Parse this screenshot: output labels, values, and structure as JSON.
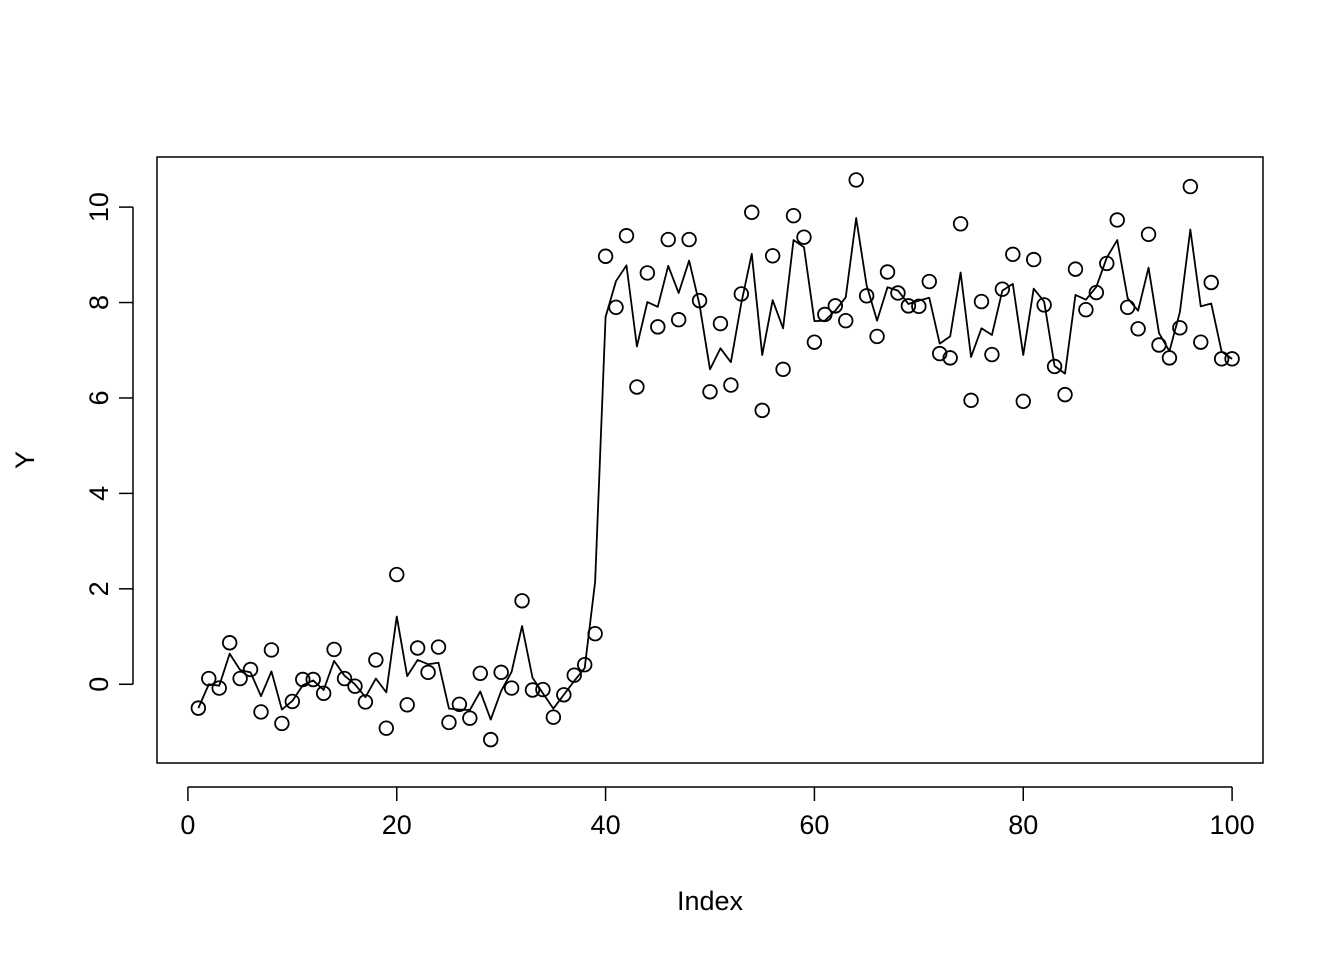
{
  "chart_data": {
    "type": "scatter",
    "title": "",
    "xlabel": "Index",
    "ylabel": "Y",
    "xlim": [
      -2.96,
      102.96
    ],
    "ylim": [
      -1.65,
      11.05
    ],
    "grid": false,
    "legend": "none",
    "x_ticks": [
      0,
      20,
      40,
      60,
      80,
      100
    ],
    "y_ticks": [
      0,
      2,
      4,
      6,
      8,
      10
    ],
    "series": [
      {
        "kind": "points",
        "values": [
          -0.5,
          0.12,
          -0.08,
          0.87,
          0.12,
          0.31,
          -0.58,
          0.72,
          -0.82,
          -0.36,
          0.1,
          0.1,
          -0.19,
          0.73,
          0.12,
          -0.04,
          -0.37,
          0.51,
          -0.92,
          2.3,
          -0.43,
          0.76,
          0.25,
          0.78,
          -0.8,
          -0.42,
          -0.71,
          0.23,
          -1.16,
          0.25,
          -0.08,
          1.75,
          -0.12,
          -0.11,
          -0.69,
          -0.22,
          0.19,
          0.41,
          1.06,
          8.97,
          7.9,
          9.4,
          6.23,
          8.62,
          7.49,
          9.32,
          7.64,
          9.32,
          8.04,
          6.13,
          7.56,
          6.27,
          8.18,
          9.89,
          5.74,
          8.98,
          6.6,
          9.82,
          9.37,
          7.17,
          7.75,
          7.93,
          7.62,
          10.57,
          8.14,
          7.29,
          8.64,
          8.2,
          7.93,
          7.92,
          8.44,
          6.93,
          6.84,
          9.65,
          5.95,
          8.02,
          6.91,
          8.28,
          9.01,
          5.93,
          8.9,
          7.95,
          6.66,
          6.07,
          8.7,
          7.85,
          8.21,
          8.82,
          9.73,
          7.9,
          7.45,
          9.43,
          7.11,
          6.84,
          7.47,
          10.43,
          7.17,
          8.42,
          6.82,
          6.82
        ]
      },
      {
        "kind": "line",
        "values": [
          -0.5,
          0.0,
          -0.03,
          0.64,
          0.3,
          0.25,
          -0.25,
          0.27,
          -0.53,
          -0.35,
          -0.02,
          0.08,
          -0.12,
          0.49,
          0.18,
          0.0,
          -0.27,
          0.12,
          -0.17,
          1.42,
          0.17,
          0.51,
          0.42,
          0.45,
          -0.51,
          -0.53,
          -0.54,
          -0.15,
          -0.74,
          -0.14,
          0.26,
          1.22,
          0.14,
          -0.19,
          -0.51,
          -0.22,
          0.07,
          0.34,
          2.15,
          7.7,
          8.45,
          8.78,
          7.08,
          8.01,
          7.91,
          8.77,
          8.2,
          8.88,
          7.95,
          6.6,
          7.04,
          6.75,
          7.99,
          9.02,
          6.9,
          8.05,
          7.46,
          9.31,
          9.16,
          7.61,
          7.62,
          7.83,
          8.11,
          9.77,
          8.36,
          7.62,
          8.32,
          8.25,
          7.97,
          8.04,
          8.1,
          7.14,
          7.29,
          8.63,
          6.86,
          7.46,
          7.32,
          8.25,
          8.39,
          6.9,
          8.29,
          8.02,
          6.67,
          6.51,
          8.16,
          8.06,
          8.33,
          8.94,
          9.31,
          8.09,
          7.83,
          8.73,
          7.36,
          6.98,
          7.8,
          9.53,
          7.92,
          7.98,
          6.97,
          6.82
        ]
      }
    ]
  }
}
